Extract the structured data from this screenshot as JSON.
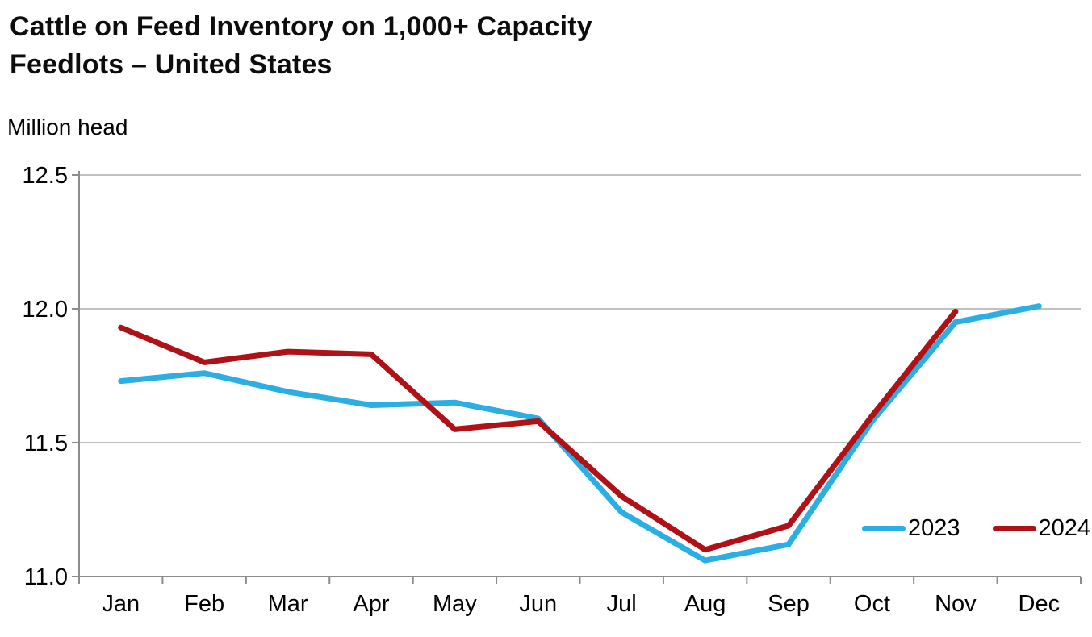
{
  "header": {
    "title_line1": "Cattle on Feed Inventory on 1,000+ Capacity",
    "title_line2": "Feedlots – United States"
  },
  "chart_data": {
    "type": "line",
    "title": "Cattle on Feed Inventory on 1,000+ Capacity Feedlots – United States",
    "ylabel": "Million head",
    "xlabel": "",
    "categories": [
      "Jan",
      "Feb",
      "Mar",
      "Apr",
      "May",
      "Jun",
      "Jul",
      "Aug",
      "Sep",
      "Oct",
      "Nov",
      "Dec"
    ],
    "series": [
      {
        "name": "2023",
        "color": "#2BAEE4",
        "values": [
          11.73,
          11.76,
          11.69,
          11.64,
          11.65,
          11.59,
          11.24,
          11.06,
          11.12,
          11.58,
          11.95,
          12.01
        ]
      },
      {
        "name": "2024",
        "color": "#B01117",
        "values": [
          11.93,
          11.8,
          11.84,
          11.83,
          11.55,
          11.58,
          11.3,
          11.1,
          11.19,
          11.6,
          11.99,
          null
        ]
      }
    ],
    "ylim": [
      11.0,
      12.5
    ],
    "ytick_labels": [
      "12.5",
      "12.0",
      "11.5",
      "11.0"
    ],
    "ytick_values": [
      12.5,
      12.0,
      11.5,
      11.0
    ],
    "grid": "horizontal",
    "legend_position": "inside-bottom-right"
  },
  "colors": {
    "grid": "#ABABAB",
    "axis": "#8C8C8C",
    "text": "#000000",
    "background": "#FFFFFF",
    "series_2023": "#2BAEE4",
    "series_2024": "#B01117"
  }
}
